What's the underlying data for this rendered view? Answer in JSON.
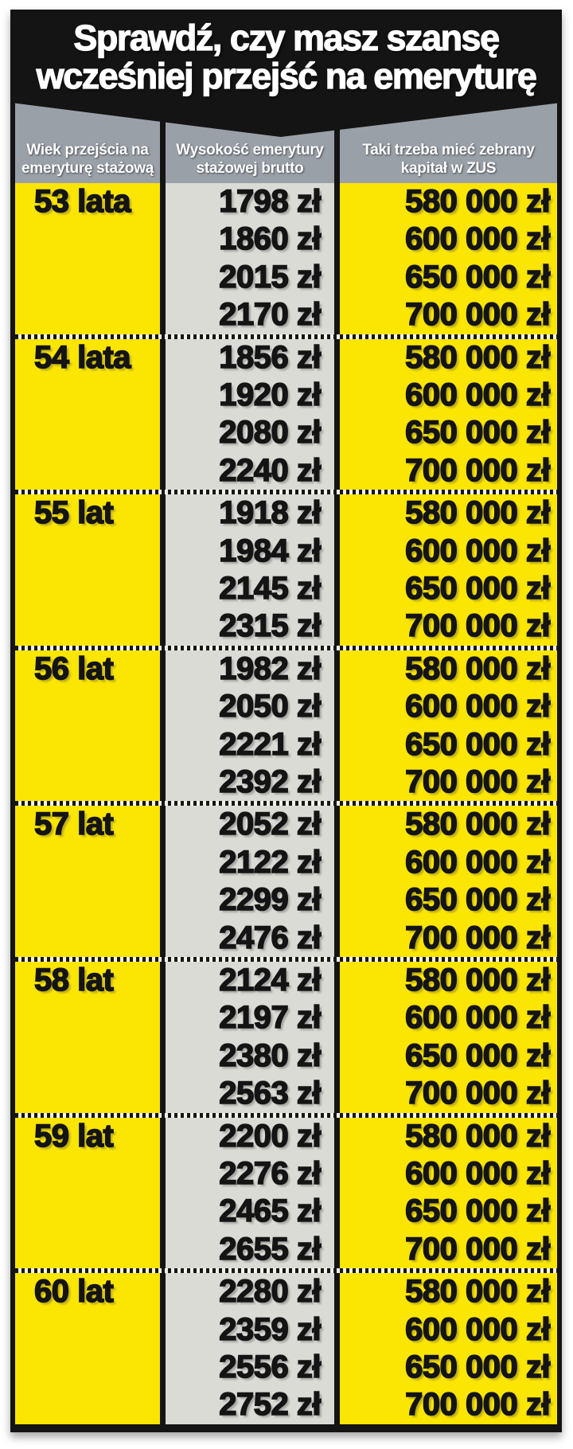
{
  "title": {
    "line1": "Sprawdź, czy masz szansę",
    "line2": "wcześniej przejść na emeryturę"
  },
  "header": {
    "columns": [
      {
        "label": "Wiek przejścia na emeryturę stażową"
      },
      {
        "label": "Wysokość emerytury stażowej brutto"
      },
      {
        "label": "Taki trzeba mieć zebrany kapitał w ZUS"
      }
    ]
  },
  "chart_data": {
    "type": "table",
    "title": "Sprawdź, czy masz szansę wcześniej przejść na emeryturę",
    "columns": [
      "Wiek przejścia na emeryturę stażową",
      "Wysokość emerytury stażowej brutto",
      "Taki trzeba mieć zebrany kapitał w ZUS"
    ],
    "currency_suffix": "zł",
    "groups": [
      {
        "age": "53 lata",
        "pensions": [
          "1798 zł",
          "1860 zł",
          "2015 zł",
          "2170 zł"
        ],
        "capitals": [
          "580 000 zł",
          "600 000 zł",
          "650 000 zł",
          "700 000 zł"
        ]
      },
      {
        "age": "54 lata",
        "pensions": [
          "1856 zł",
          "1920 zł",
          "2080 zł",
          "2240 zł"
        ],
        "capitals": [
          "580 000 zł",
          "600 000 zł",
          "650 000 zł",
          "700 000 zł"
        ]
      },
      {
        "age": "55 lat",
        "pensions": [
          "1918 zł",
          "1984 zł",
          "2145 zł",
          "2315 zł"
        ],
        "capitals": [
          "580 000 zł",
          "600 000 zł",
          "650 000 zł",
          "700 000 zł"
        ]
      },
      {
        "age": "56 lat",
        "pensions": [
          "1982 zł",
          "2050 zł",
          "2221 zł",
          "2392 zł"
        ],
        "capitals": [
          "580 000 zł",
          "600 000 zł",
          "650 000 zł",
          "700 000 zł"
        ]
      },
      {
        "age": "57 lat",
        "pensions": [
          "2052 zł",
          "2122 zł",
          "2299 zł",
          "2476 zł"
        ],
        "capitals": [
          "580 000 zł",
          "600 000 zł",
          "650 000 zł",
          "700 000 zł"
        ]
      },
      {
        "age": "58 lat",
        "pensions": [
          "2124 zł",
          "2197 zł",
          "2380 zł",
          "2563 zł"
        ],
        "capitals": [
          "580 000 zł",
          "600 000 zł",
          "650 000 zł",
          "700 000 zł"
        ]
      },
      {
        "age": "59 lat",
        "pensions": [
          "2200 zł",
          "2276 zł",
          "2465 zł",
          "2655 zł"
        ],
        "capitals": [
          "580 000 zł",
          "600 000 zł",
          "650 000 zł",
          "700 000 zł"
        ]
      },
      {
        "age": "60 lat",
        "pensions": [
          "2280 zł",
          "2359 zł",
          "2556 zł",
          "2752 zł"
        ],
        "capitals": [
          "580 000 zł",
          "600 000 zł",
          "650 000 zł",
          "700 000 zł"
        ]
      }
    ]
  },
  "colors": {
    "yellow": "#fbe503",
    "column_gray": "#d9dbd4",
    "header_gray": "#9aa0a8",
    "black": "#141414",
    "text_white": "#ffffff",
    "background": "#ffffff"
  }
}
